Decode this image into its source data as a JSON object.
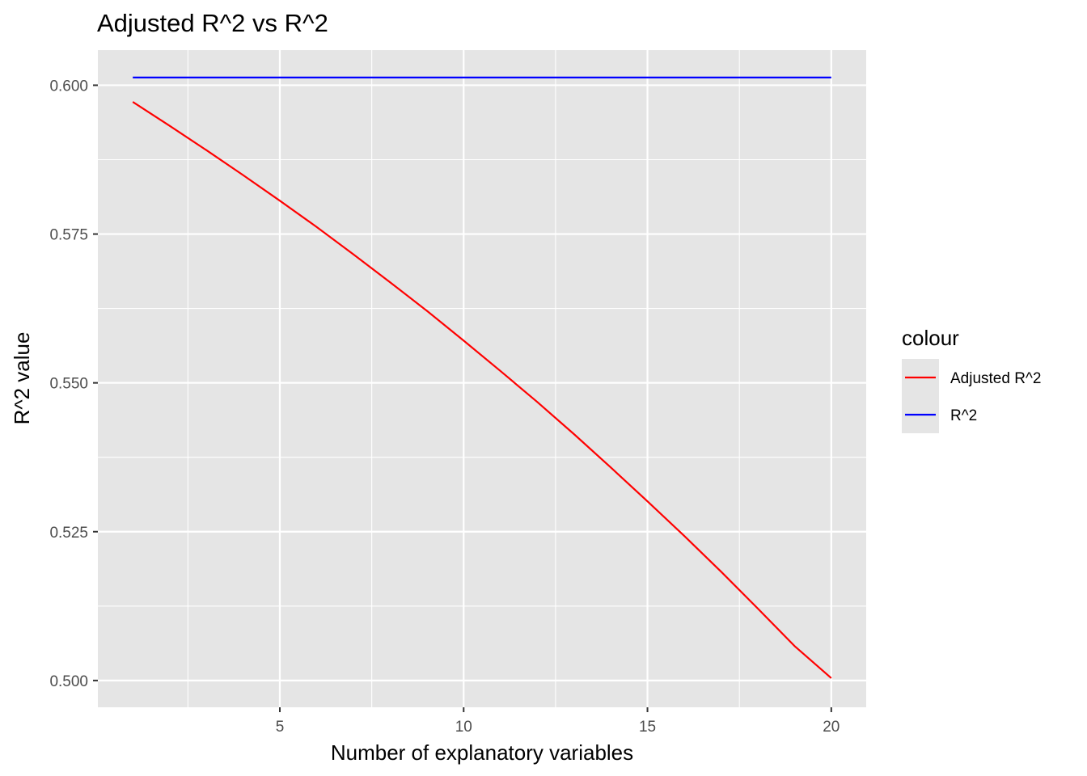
{
  "chart_data": {
    "type": "line",
    "title": "Adjusted R^2 vs R^2",
    "xlabel": "Number of explanatory variables",
    "ylabel": "R^2 value",
    "xlim": [
      0.05,
      20.95
    ],
    "ylim": [
      0.4955,
      0.6059
    ],
    "x_ticks": [
      5,
      10,
      15,
      20
    ],
    "x_tick_labels": [
      "5",
      "10",
      "15",
      "20"
    ],
    "x_minor_ticks": [
      2.5,
      7.5,
      12.5,
      17.5
    ],
    "y_ticks": [
      0.5,
      0.525,
      0.55,
      0.575,
      0.6
    ],
    "y_tick_labels": [
      "0.500",
      "0.525",
      "0.550",
      "0.575",
      "0.600"
    ],
    "y_minor_ticks": [
      0.5125,
      0.5375,
      0.5625,
      0.5875
    ],
    "grid": true,
    "background": "#e5e5e5",
    "legend": {
      "title": "colour",
      "position": "right",
      "entries": [
        {
          "label": "Adjusted R^2",
          "color": "#ff0000"
        },
        {
          "label": "R^2",
          "color": "#0000ff"
        }
      ]
    },
    "x": [
      1,
      2,
      3,
      4,
      5,
      6,
      7,
      8,
      9,
      10,
      11,
      12,
      13,
      14,
      15,
      16,
      17,
      18,
      19,
      20
    ],
    "series": [
      {
        "name": "Adjusted R^2",
        "color": "#ff0000",
        "values": [
          0.5972,
          0.5932,
          0.5891,
          0.5849,
          0.5806,
          0.5762,
          0.5716,
          0.5669,
          0.5621,
          0.5571,
          0.552,
          0.5468,
          0.5414,
          0.5358,
          0.5301,
          0.5243,
          0.5183,
          0.5121,
          0.5058,
          0.5004
        ]
      },
      {
        "name": "R^2",
        "color": "#0000ff",
        "values": [
          0.6013,
          0.6013,
          0.6013,
          0.6013,
          0.6013,
          0.6013,
          0.6013,
          0.6013,
          0.6013,
          0.6013,
          0.6013,
          0.6013,
          0.6013,
          0.6013,
          0.6013,
          0.6013,
          0.6013,
          0.6013,
          0.6013,
          0.6013
        ]
      }
    ]
  }
}
